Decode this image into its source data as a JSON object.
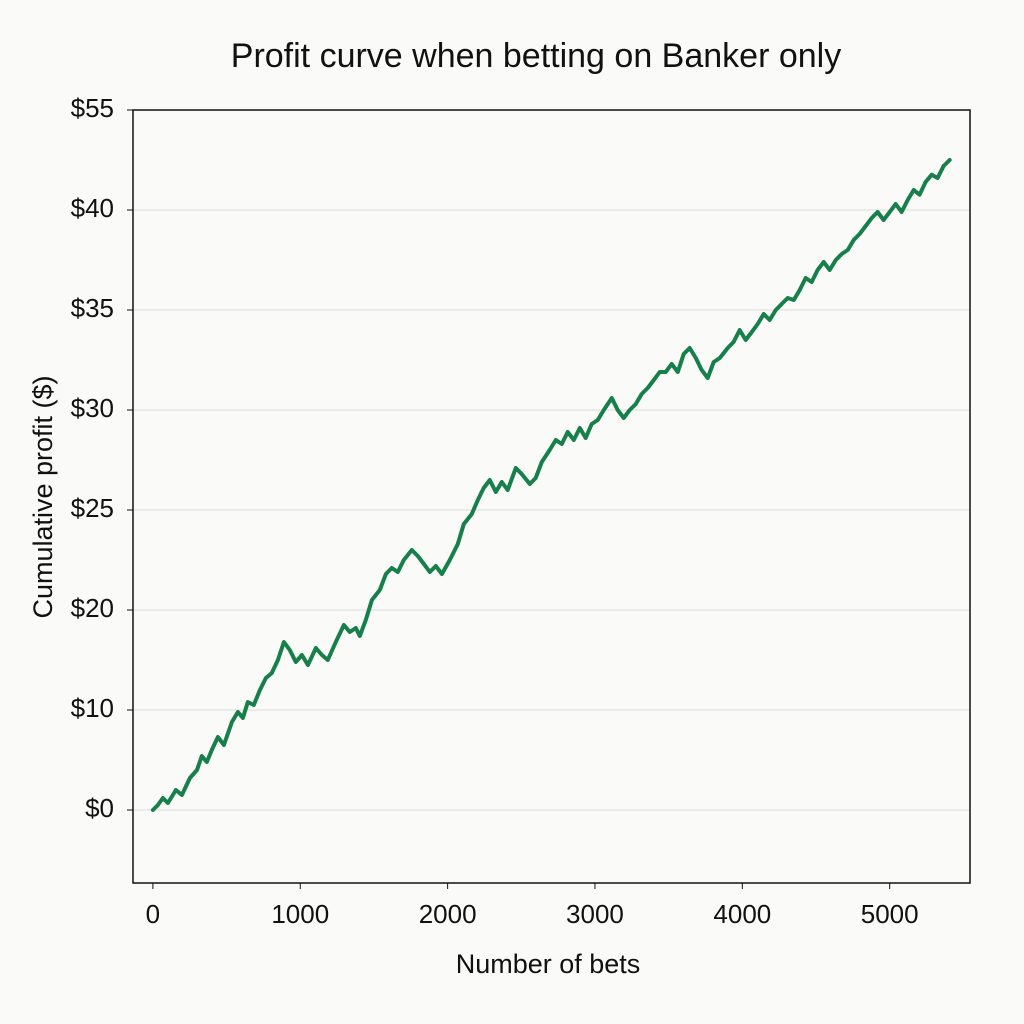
{
  "chart_data": {
    "type": "line",
    "title": "Profit curve when betting on Banker only",
    "x_label": "Number of bets",
    "y_label": "Cumulative profit ($)",
    "xlim": [
      -135,
      5545
    ],
    "xticks": [
      0,
      1000,
      2000,
      3000,
      4000,
      5000
    ],
    "ylim": [
      -7.3,
      55
    ],
    "yticks": [
      {
        "value": 0,
        "label": "$0"
      },
      {
        "value": 10,
        "label": "$10"
      },
      {
        "value": 20,
        "label": "$20"
      },
      {
        "value": 25,
        "label": "$25"
      },
      {
        "value": 30,
        "label": "$30"
      },
      {
        "value": 35,
        "label": "$35"
      },
      {
        "value": 40,
        "label": "$40"
      },
      {
        "value": 55,
        "label": "$55"
      }
    ],
    "grid": true,
    "x": [
      0,
      34,
      68,
      102,
      156,
      197,
      251,
      299,
      332,
      366,
      400,
      441,
      482,
      536,
      577,
      611,
      644,
      685,
      726,
      767,
      807,
      848,
      889,
      929,
      970,
      1011,
      1052,
      1106,
      1147,
      1187,
      1241,
      1296,
      1336,
      1377,
      1404,
      1445,
      1486,
      1540,
      1581,
      1621,
      1662,
      1703,
      1757,
      1798,
      1839,
      1879,
      1920,
      1961,
      2015,
      2069,
      2110,
      2164,
      2205,
      2245,
      2286,
      2327,
      2368,
      2408,
      2463,
      2503,
      2558,
      2598,
      2639,
      2693,
      2734,
      2775,
      2815,
      2856,
      2897,
      2937,
      2978,
      3019,
      3060,
      3114,
      3154,
      3195,
      3236,
      3277,
      3317,
      3358,
      3399,
      3439,
      3480,
      3521,
      3562,
      3602,
      3643,
      3684,
      3724,
      3765,
      3806,
      3847,
      3901,
      3941,
      3982,
      4023,
      4064,
      4104,
      4145,
      4186,
      4227,
      4267,
      4308,
      4349,
      4389,
      4430,
      4471,
      4511,
      4552,
      4593,
      4634,
      4674,
      4715,
      4756,
      4796,
      4837,
      4878,
      4918,
      4959,
      5000,
      5041,
      5081,
      5122,
      5163,
      5203,
      5244,
      5285,
      5325,
      5366,
      5407
    ],
    "series": [
      {
        "name": "Cumulative profit",
        "color": "#17804a",
        "values": [
          0,
          0.5,
          1.2,
          0.7,
          2.0,
          1.5,
          3.2,
          4.0,
          5.4,
          4.8,
          6.0,
          7.3,
          6.5,
          8.8,
          9.8,
          9.2,
          10.8,
          10.5,
          12.0,
          13.2,
          13.7,
          15.0,
          16.8,
          16.0,
          14.8,
          15.5,
          14.5,
          16.2,
          15.5,
          15.0,
          16.8,
          18.5,
          17.8,
          18.2,
          17.4,
          19.0,
          20.5,
          21.0,
          21.8,
          22.1,
          21.9,
          22.5,
          23.0,
          22.7,
          22.3,
          21.9,
          22.2,
          21.8,
          22.5,
          23.3,
          24.3,
          24.8,
          25.5,
          26.1,
          26.5,
          25.9,
          26.4,
          26.0,
          27.1,
          26.8,
          26.3,
          26.6,
          27.4,
          28.0,
          28.5,
          28.3,
          28.9,
          28.5,
          29.1,
          28.6,
          29.3,
          29.5,
          30.0,
          30.6,
          30.0,
          29.6,
          30.0,
          30.3,
          30.8,
          31.1,
          31.5,
          31.9,
          31.9,
          32.3,
          31.9,
          32.8,
          33.1,
          32.6,
          32.0,
          31.6,
          32.4,
          32.6,
          33.1,
          33.4,
          34.0,
          33.5,
          33.9,
          34.3,
          34.8,
          34.5,
          35.0,
          35.3,
          35.6,
          35.5,
          36.0,
          36.6,
          36.4,
          37.0,
          37.4,
          37.0,
          37.5,
          37.8,
          38.0,
          38.5,
          38.8,
          39.2,
          39.6,
          39.9,
          39.5,
          39.9,
          40.9,
          39.9,
          41.5,
          43.0,
          42.3,
          44.2,
          45.3,
          44.8,
          46.6,
          47.5
        ]
      }
    ]
  }
}
